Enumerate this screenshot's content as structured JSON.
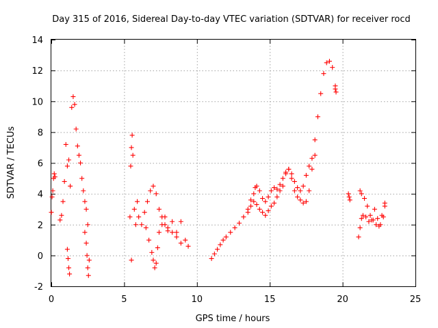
{
  "chart_data": {
    "type": "scatter",
    "title": "Day 315 of 2016, Sidereal Day-to-day VTEC variation (SDTVAR) for receiver rocd",
    "xlabel": "GPS time / hours",
    "ylabel": "SDTVAR / TECUs",
    "xlim": [
      0,
      25
    ],
    "ylim": [
      -2,
      14
    ],
    "xticks": [
      0,
      5,
      10,
      15,
      20,
      25
    ],
    "yticks": [
      -2,
      0,
      2,
      4,
      6,
      8,
      10,
      12,
      14
    ],
    "grid": true,
    "marker": "+",
    "color": "#ff0000",
    "segments": [
      {
        "x": [
          0.0,
          0.05,
          0.1,
          0.15,
          0.2,
          0.25
        ],
        "y": [
          2.8,
          3.8,
          4.2,
          5.0,
          5.3,
          5.1
        ]
      },
      {
        "x": [
          0.6,
          0.7,
          0.8,
          0.9,
          1.0,
          1.1,
          1.2,
          1.3,
          1.4,
          1.5,
          1.6,
          1.7,
          1.8,
          1.9,
          2.0,
          2.1,
          2.2,
          2.3,
          2.4,
          2.5,
          2.6
        ],
        "y": [
          2.3,
          2.6,
          3.5,
          4.8,
          7.2,
          5.8,
          6.2,
          4.5,
          9.6,
          10.3,
          9.8,
          8.2,
          7.1,
          6.5,
          6.0,
          5.0,
          4.2,
          3.5,
          3.0,
          2.0,
          -0.3
        ]
      },
      {
        "x": [
          1.1,
          1.15,
          1.2,
          1.25
        ],
        "y": [
          0.4,
          -0.2,
          -0.8,
          -1.2
        ]
      },
      {
        "x": [
          2.3,
          2.4,
          2.45,
          2.5,
          2.55
        ],
        "y": [
          1.5,
          0.8,
          0.0,
          -0.8,
          -1.3
        ]
      },
      {
        "x": [
          5.4,
          5.45,
          5.5,
          5.55,
          5.6,
          5.7,
          5.8,
          5.9,
          6.0,
          6.2,
          6.4,
          6.6,
          6.8,
          7.0,
          7.2,
          7.4,
          7.6,
          7.8,
          8.0,
          8.3,
          8.6,
          8.9,
          9.2,
          9.4
        ],
        "y": [
          2.5,
          5.8,
          7.0,
          7.8,
          6.5,
          3.0,
          2.0,
          3.5,
          2.5,
          2.0,
          2.8,
          3.5,
          4.2,
          4.5,
          4.0,
          3.0,
          2.0,
          2.5,
          1.8,
          1.5,
          1.2,
          2.2,
          1.0,
          0.6
        ]
      },
      {
        "x": [
          5.5
        ],
        "y": [
          -0.3
        ]
      },
      {
        "x": [
          6.5,
          6.7,
          6.9,
          7.0,
          7.1,
          7.2,
          7.3,
          7.4,
          7.6,
          7.8,
          8.0,
          8.3,
          8.6,
          8.9
        ],
        "y": [
          1.8,
          1.0,
          0.2,
          -0.3,
          -0.8,
          -0.5,
          0.5,
          1.5,
          2.5,
          2.0,
          1.6,
          2.2,
          1.5,
          0.8
        ]
      },
      {
        "x": [
          11.0,
          11.2,
          11.4,
          11.6,
          11.8,
          12.0,
          12.3,
          12.6,
          12.9,
          13.2,
          13.5,
          13.7,
          13.9,
          14.0,
          14.1,
          14.3,
          14.5,
          14.7,
          14.9,
          15.1,
          15.3,
          15.5,
          15.7,
          15.9,
          16.1,
          16.3,
          16.5,
          16.7,
          16.9,
          17.1,
          17.3,
          17.5,
          17.7,
          17.9,
          18.1,
          18.3,
          18.5,
          18.7,
          18.9,
          19.1,
          19.3,
          19.5
        ],
        "y": [
          -0.2,
          0.1,
          0.4,
          0.7,
          1.0,
          1.2,
          1.5,
          1.8,
          2.1,
          2.5,
          3.0,
          3.6,
          4.0,
          4.4,
          4.5,
          4.2,
          3.7,
          3.5,
          3.8,
          4.2,
          4.4,
          4.3,
          4.6,
          5.0,
          5.4,
          5.6,
          5.3,
          4.8,
          4.4,
          4.2,
          4.5,
          5.2,
          5.8,
          6.3,
          7.5,
          9.0,
          10.5,
          11.8,
          12.5,
          12.6,
          12.2,
          11.0
        ]
      },
      {
        "x": [
          13.5,
          13.7,
          13.9,
          14.1,
          14.3,
          14.5,
          14.7,
          14.9,
          15.1,
          15.3,
          15.5,
          15.7,
          15.9,
          16.1,
          16.3,
          16.5,
          16.7,
          16.9,
          17.1,
          17.3,
          17.5,
          17.7,
          17.9,
          18.1
        ],
        "y": [
          2.8,
          3.2,
          3.5,
          3.3,
          3.0,
          2.8,
          2.6,
          2.9,
          3.2,
          3.4,
          3.8,
          4.2,
          4.5,
          5.3,
          5.6,
          5.0,
          4.2,
          3.8,
          3.6,
          3.4,
          3.5,
          4.2,
          5.6,
          6.5
        ]
      },
      {
        "x": [
          19.5,
          19.55
        ],
        "y": [
          10.8,
          10.6
        ]
      },
      {
        "x": [
          20.4,
          20.45,
          20.5
        ],
        "y": [
          4.0,
          3.8,
          3.6
        ]
      },
      {
        "x": [
          21.1,
          21.2,
          21.3,
          21.4,
          21.6,
          21.8,
          22.0,
          22.2,
          22.4,
          22.6,
          22.8,
          22.9
        ],
        "y": [
          1.2,
          1.8,
          2.4,
          2.6,
          2.5,
          2.2,
          2.3,
          3.0,
          2.4,
          2.0,
          2.5,
          3.4
        ]
      },
      {
        "x": [
          21.2,
          21.3,
          21.5,
          21.7,
          21.9,
          22.1,
          22.3,
          22.5,
          22.7,
          22.9
        ],
        "y": [
          4.2,
          4.0,
          3.7,
          3.2,
          2.6,
          2.3,
          2.0,
          1.9,
          2.6,
          3.2
        ]
      }
    ]
  }
}
